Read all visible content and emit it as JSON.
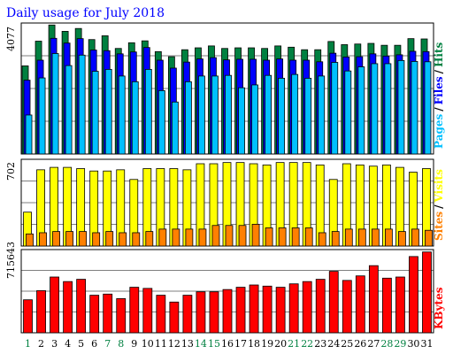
{
  "title": "Daily usage for July 2018",
  "colors": {
    "hits": "#008040",
    "files": "#0000ff",
    "pages": "#00c0ff",
    "visits": "#ffff00",
    "sites": "#ff8000",
    "kbytes": "#ff0000",
    "weekend": "#008040",
    "weekday": "#000000"
  },
  "legend": {
    "top": {
      "hits": "Hits",
      "sep1": "/",
      "files": "Files",
      "sep2": "/",
      "pages": "Pages"
    },
    "middle": {
      "visits": "Visits",
      "sep": "/",
      "sites": "Sites"
    },
    "bottom": {
      "kbytes": "KBytes"
    }
  },
  "chart_data": [
    {
      "type": "bar",
      "title": "Daily usage for July 2018",
      "ymax_label": "4077",
      "ylim": [
        0,
        4077
      ],
      "categories": [
        "1",
        "2",
        "3",
        "4",
        "5",
        "6",
        "7",
        "8",
        "9",
        "10",
        "11",
        "12",
        "13",
        "14",
        "15",
        "16",
        "17",
        "18",
        "19",
        "20",
        "21",
        "22",
        "23",
        "24",
        "25",
        "26",
        "27",
        "28",
        "29",
        "30",
        "31"
      ],
      "weekend": [
        true,
        false,
        false,
        false,
        false,
        false,
        true,
        true,
        false,
        false,
        false,
        false,
        false,
        true,
        true,
        false,
        false,
        false,
        false,
        false,
        true,
        true,
        false,
        false,
        false,
        false,
        false,
        true,
        true,
        false,
        false
      ],
      "series": [
        {
          "name": "Hits",
          "values": [
            2780,
            3560,
            4070,
            3870,
            3960,
            3610,
            3730,
            3330,
            3510,
            3570,
            3230,
            3070,
            3290,
            3350,
            3410,
            3330,
            3350,
            3350,
            3330,
            3410,
            3370,
            3290,
            3290,
            3550,
            3450,
            3470,
            3490,
            3430,
            3430,
            3640,
            3630
          ]
        },
        {
          "name": "Files",
          "values": [
            2330,
            2960,
            3650,
            3500,
            3640,
            3280,
            3260,
            3160,
            3220,
            3360,
            2960,
            2710,
            2900,
            3000,
            3040,
            2970,
            2990,
            2990,
            2960,
            3000,
            2960,
            2960,
            2910,
            3180,
            3060,
            3070,
            3160,
            3090,
            3130,
            3240,
            3230
          ]
        },
        {
          "name": "Pages",
          "values": [
            1230,
            2400,
            3170,
            2790,
            3120,
            2610,
            2670,
            2460,
            2280,
            2670,
            2000,
            1640,
            2280,
            2460,
            2460,
            2480,
            2090,
            2180,
            2480,
            2390,
            2510,
            2390,
            2460,
            2890,
            2620,
            2750,
            2850,
            2850,
            2950,
            2920,
            2910
          ]
        }
      ]
    },
    {
      "type": "bar",
      "ymax_label": "702",
      "ylim": [
        0,
        702
      ],
      "categories": [
        "1",
        "2",
        "3",
        "4",
        "5",
        "6",
        "7",
        "8",
        "9",
        "10",
        "11",
        "12",
        "13",
        "14",
        "15",
        "16",
        "17",
        "18",
        "19",
        "20",
        "21",
        "22",
        "23",
        "24",
        "25",
        "26",
        "27",
        "28",
        "29",
        "30",
        "31"
      ],
      "series": [
        {
          "name": "Visits",
          "values": [
            280,
            630,
            650,
            650,
            640,
            620,
            620,
            630,
            550,
            640,
            640,
            640,
            630,
            680,
            680,
            690,
            690,
            680,
            670,
            690,
            690,
            690,
            670,
            550,
            680,
            670,
            660,
            670,
            650,
            610,
            640
          ]
        },
        {
          "name": "Sites",
          "values": [
            100,
            110,
            120,
            120,
            120,
            110,
            120,
            110,
            110,
            120,
            140,
            140,
            140,
            140,
            170,
            170,
            170,
            180,
            150,
            150,
            150,
            150,
            110,
            120,
            140,
            140,
            140,
            140,
            120,
            140,
            130
          ]
        }
      ]
    },
    {
      "type": "bar",
      "ymax_label": "715643",
      "ylim": [
        0,
        715643
      ],
      "categories": [
        "1",
        "2",
        "3",
        "4",
        "5",
        "6",
        "7",
        "8",
        "9",
        "10",
        "11",
        "12",
        "13",
        "14",
        "15",
        "16",
        "17",
        "18",
        "19",
        "20",
        "21",
        "22",
        "23",
        "24",
        "25",
        "26",
        "27",
        "28",
        "29",
        "30",
        "31"
      ],
      "series": [
        {
          "name": "KBytes",
          "values": [
            290000,
            370000,
            490000,
            450000,
            470000,
            330000,
            340000,
            300000,
            400000,
            390000,
            330000,
            270000,
            330000,
            360000,
            360000,
            380000,
            400000,
            420000,
            410000,
            400000,
            430000,
            450000,
            470000,
            540000,
            460000,
            500000,
            590000,
            480000,
            490000,
            670000,
            710000
          ]
        }
      ]
    }
  ]
}
